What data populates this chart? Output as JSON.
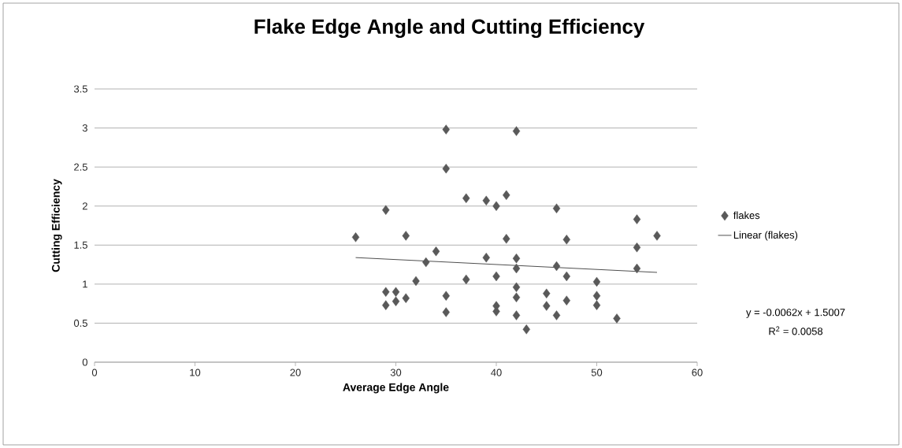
{
  "chart_data": {
    "type": "scatter",
    "title": "Flake Edge Angle and Cutting Efficiency",
    "xlabel": "Average Edge Angle",
    "ylabel": "Cutting Efficiency",
    "xlim": [
      0,
      60
    ],
    "xticks": [
      0,
      10,
      20,
      30,
      40,
      50,
      60
    ],
    "ylim": [
      0,
      3.5
    ],
    "yticks": [
      0,
      0.5,
      1,
      1.5,
      2,
      2.5,
      3,
      3.5
    ],
    "grid": "y",
    "legend": "right",
    "series": [
      {
        "name": "flakes",
        "color": "#595959",
        "marker": "diamond",
        "x": [
          26,
          29,
          29,
          29,
          30,
          30,
          31,
          31,
          32,
          33,
          34,
          35,
          35,
          35,
          35,
          37,
          37,
          39,
          39,
          40,
          40,
          40,
          40,
          41,
          41,
          42,
          42,
          42,
          42,
          42,
          42,
          43,
          45,
          45,
          46,
          46,
          46,
          47,
          47,
          47,
          50,
          50,
          50,
          52,
          54,
          54,
          54,
          56
        ],
        "values": [
          1.6,
          1.95,
          0.9,
          0.73,
          0.9,
          0.78,
          1.62,
          0.82,
          1.04,
          1.28,
          1.42,
          2.98,
          2.48,
          0.85,
          0.64,
          2.1,
          1.06,
          2.07,
          1.34,
          2.0,
          1.1,
          0.72,
          0.65,
          2.14,
          1.58,
          2.96,
          1.33,
          1.2,
          0.96,
          0.83,
          0.6,
          0.42,
          0.88,
          0.72,
          1.97,
          1.23,
          0.6,
          1.57,
          1.1,
          0.79,
          1.03,
          0.85,
          0.73,
          0.56,
          1.83,
          1.47,
          1.2,
          1.62
        ]
      },
      {
        "name": "Linear (flakes)",
        "type": "line",
        "marker": "none",
        "color": "#000000",
        "x": [
          26,
          56
        ],
        "values": [
          1.34,
          1.15
        ]
      }
    ],
    "annotations": [
      "y = -0.0062x + 1.5007",
      "R$^{2}$ = 0.0058"
    ]
  }
}
